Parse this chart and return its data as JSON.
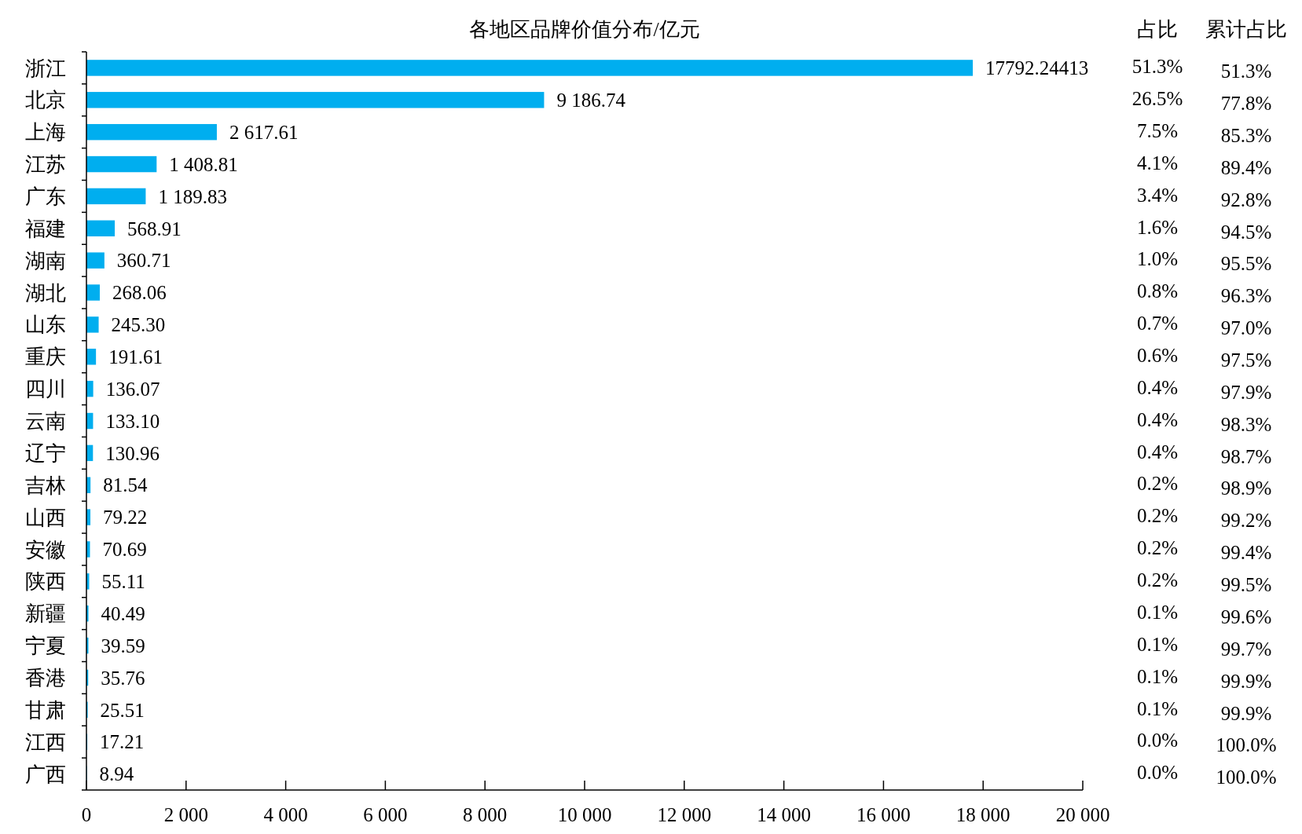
{
  "chart_data": {
    "type": "bar",
    "orientation": "horizontal",
    "title": "各地区品牌价值分布/亿元",
    "categories": [
      "浙江",
      "北京",
      "上海",
      "江苏",
      "广东",
      "福建",
      "湖南",
      "湖北",
      "山东",
      "重庆",
      "四川",
      "云南",
      "辽宁",
      "吉林",
      "山西",
      "安徽",
      "陕西",
      "新疆",
      "宁夏",
      "香港",
      "甘肃",
      "江西",
      "广西"
    ],
    "values": [
      17792.24413,
      9186.74,
      2617.61,
      1408.81,
      1189.83,
      568.91,
      360.71,
      268.06,
      245.3,
      191.61,
      136.07,
      133.1,
      130.96,
      81.54,
      79.22,
      70.69,
      55.11,
      40.49,
      39.59,
      35.76,
      25.51,
      17.21,
      8.94
    ],
    "value_labels": [
      "17792.24413",
      "9 186.74",
      "2 617.61",
      "1 408.81",
      "1 189.83",
      "568.91",
      "360.71",
      "268.06",
      "245.30",
      "191.61",
      "136.07",
      "133.10",
      "130.96",
      "81.54",
      "79.22",
      "70.69",
      "55.11",
      "40.49",
      "39.59",
      "35.76",
      "25.51",
      "17.21",
      "8.94"
    ],
    "color": "#00aeef",
    "xlim": [
      0,
      20000
    ],
    "xticks": [
      0,
      {
        "value": 2000,
        "label": "2 000"
      },
      {
        "value": 4000,
        "label": "4 000"
      },
      {
        "value": 6000,
        "label": "6 000"
      },
      {
        "value": 8000,
        "label": "8 000"
      },
      {
        "value": 10000,
        "label": "10 000"
      },
      {
        "value": 12000,
        "label": "12 000"
      },
      {
        "value": 14000,
        "label": "14 000"
      },
      {
        "value": 16000,
        "label": "16 000"
      },
      {
        "value": 18000,
        "label": "18 000"
      },
      {
        "value": 20000,
        "label": "20 000"
      }
    ],
    "grid": false,
    "annotations": [
      "占比",
      "累计占比",
      "51.3%",
      "51.3%",
      "26.5%",
      "77.8%",
      "7.5%",
      "85.3%",
      "4.1%",
      "89.4%",
      "3.4%",
      "92.8%",
      "1.6%",
      "94.5%",
      "1.0%",
      "95.5%",
      "0.8%",
      "96.3%",
      "0.7%",
      "97.0%",
      "0.6%",
      "97.5%",
      "0.4%",
      "97.9%",
      "0.4%",
      "98.3%",
      "0.4%",
      "98.7%",
      "0.2%",
      "98.9%",
      "0.2%",
      "99.2%",
      "0.2%",
      "99.4%",
      "0.2%",
      "99.5%",
      "0.1%",
      "99.6%",
      "0.1%",
      "99.7%",
      "0.1%",
      "99.9%",
      "0.1%",
      "99.9%",
      "0.0%",
      "100.0%",
      "0.0%",
      "100.0%"
    ]
  }
}
